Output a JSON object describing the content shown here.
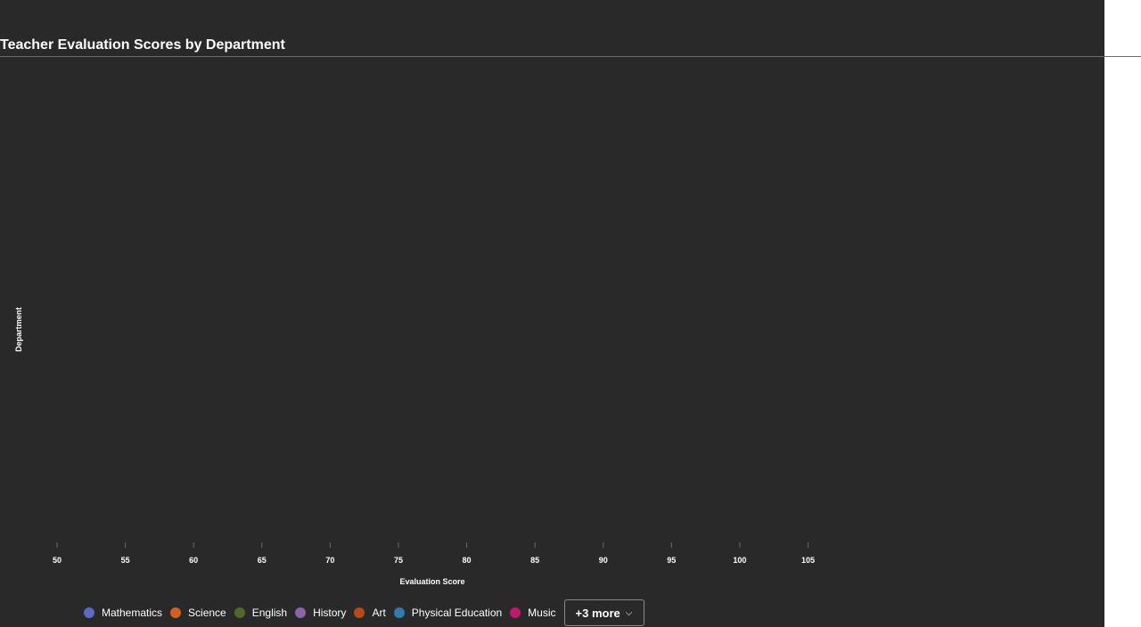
{
  "colors": {
    "background": "#292929",
    "text": "#ffffff",
    "divider": "#6b6b6b",
    "tick": "#6b6b6b"
  },
  "legend": {
    "items": [
      {
        "label": "Mathematics",
        "color": "#5b6ac4"
      },
      {
        "label": "Science",
        "color": "#d65f1e"
      },
      {
        "label": "English",
        "color": "#4d6b26"
      },
      {
        "label": "History",
        "color": "#8a64a8"
      },
      {
        "label": "Art",
        "color": "#b5491a"
      },
      {
        "label": "Physical Education",
        "color": "#3478b0"
      },
      {
        "label": "Music",
        "color": "#c0186b"
      }
    ],
    "more_label": "+3 more",
    "more_icon": "chevron-down-icon"
  },
  "chart_data": {
    "type": "scatter",
    "title": "Teacher Evaluation Scores by Department",
    "xlabel": "Evaluation Score",
    "ylabel": "Department",
    "xticks": [
      "50",
      "55",
      "60",
      "65",
      "70",
      "75",
      "80",
      "85",
      "90",
      "95",
      "100",
      "105"
    ],
    "xlim": [
      50,
      105
    ],
    "series": [],
    "grid": false,
    "legend_position": "bottom"
  }
}
